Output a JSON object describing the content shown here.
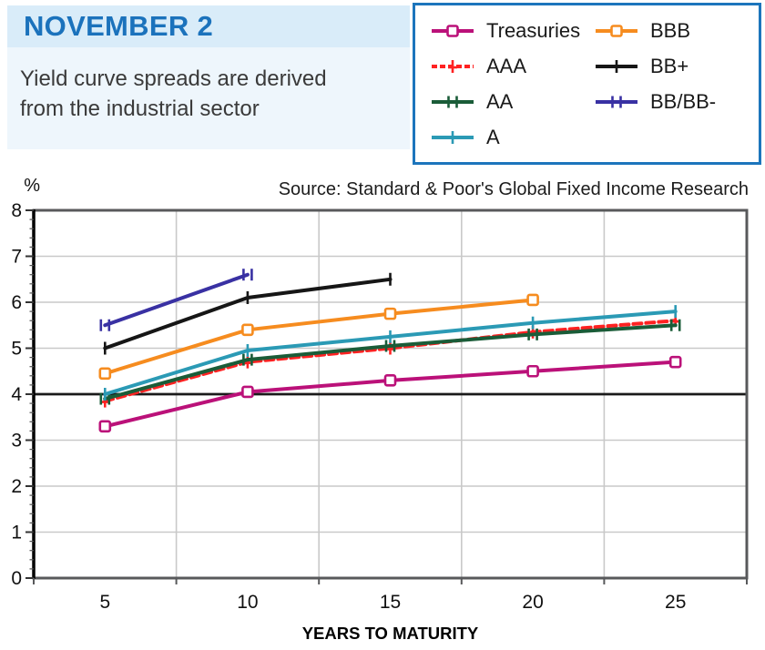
{
  "header": {
    "title": "NOVEMBER 2",
    "subtitle_line1": "Yield curve spreads are derived",
    "subtitle_line2": "from the industrial sector"
  },
  "source": "Source: Standard & Poor's Global Fixed Income Research",
  "legend": {
    "columns": [
      [
        "Treasuries",
        "AAA",
        "AA",
        "A"
      ],
      [
        "BBB",
        "BB+",
        "BB/BB-"
      ]
    ]
  },
  "colors": {
    "accent_blue": "#1B72BC",
    "header_strip_bg": "#D9ECF9",
    "subtitle_strip_bg": "#EEF6FC",
    "legend_border": "#1C75BC",
    "gridline": "#C9C9C9",
    "frame": "#58595B",
    "reference_line": "#1a1a1a"
  },
  "chart_data": {
    "type": "line",
    "title": "",
    "xlabel": "YEARS TO MATURITY",
    "ylabel": "%",
    "x": [
      5,
      10,
      15,
      20,
      25
    ],
    "ylim": [
      0,
      8
    ],
    "yticks": [
      0,
      1,
      2,
      3,
      4,
      5,
      6,
      7,
      8
    ],
    "reference_line_y": 4,
    "grid": true,
    "legend_position": "top-right",
    "series": [
      {
        "name": "Treasuries",
        "color": "#BB1179",
        "marker": "open-square",
        "dash": false,
        "values": [
          3.3,
          4.05,
          4.3,
          4.5,
          4.7
        ]
      },
      {
        "name": "AAA",
        "color": "#FF2222",
        "marker": "cross",
        "dash": true,
        "values": [
          3.85,
          4.7,
          5.0,
          5.35,
          5.6
        ]
      },
      {
        "name": "AA",
        "color": "#1A5C38",
        "marker": "h-bar",
        "dash": false,
        "values": [
          3.9,
          4.75,
          5.05,
          5.3,
          5.5
        ]
      },
      {
        "name": "A",
        "color": "#2B9AB5",
        "marker": "tick",
        "dash": false,
        "values": [
          4.0,
          4.95,
          5.25,
          5.55,
          5.8
        ]
      },
      {
        "name": "BBB",
        "color": "#F68C1F",
        "marker": "open-square",
        "dash": false,
        "values": [
          4.45,
          5.4,
          5.75,
          6.05,
          null
        ]
      },
      {
        "name": "BB+",
        "color": "#161616",
        "marker": "tick",
        "dash": false,
        "values": [
          5.0,
          6.1,
          6.5,
          null,
          null
        ]
      },
      {
        "name": "BB/BB-",
        "color": "#3931A3",
        "marker": "h-bar",
        "dash": false,
        "values": [
          5.5,
          6.6,
          null,
          null,
          null
        ]
      }
    ]
  }
}
